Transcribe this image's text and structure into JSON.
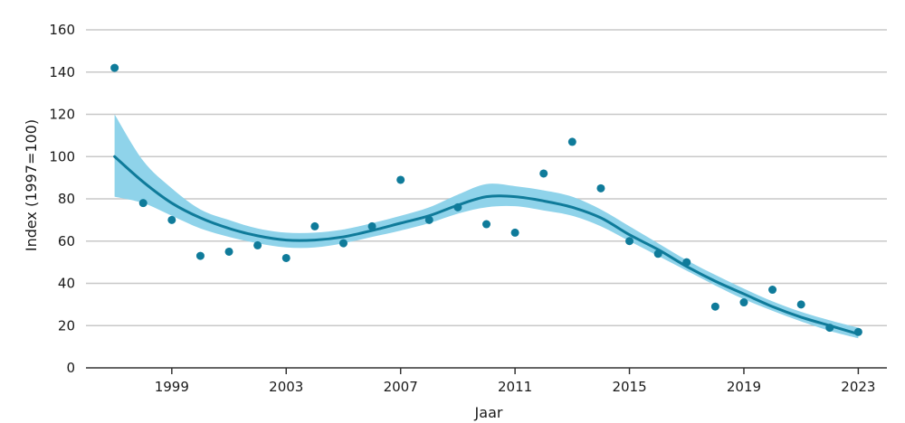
{
  "chart_data": {
    "type": "scatter",
    "xlabel": "Jaar",
    "ylabel": "Index (1997=100)",
    "xlim": [
      1996,
      2024
    ],
    "ylim": [
      0,
      160
    ],
    "x_ticks": [
      1999,
      2003,
      2007,
      2011,
      2015,
      2019,
      2023
    ],
    "y_ticks": [
      0,
      20,
      40,
      60,
      80,
      100,
      120,
      140,
      160
    ],
    "grid": "horizontal",
    "colors": {
      "points": "#0f7b9a",
      "trend": "#0f7b9a",
      "band": "#8fd3ea",
      "grid": "#c8c8c8"
    },
    "points": [
      {
        "x": 1997,
        "y": 142
      },
      {
        "x": 1998,
        "y": 78
      },
      {
        "x": 1999,
        "y": 70
      },
      {
        "x": 2000,
        "y": 53
      },
      {
        "x": 2001,
        "y": 55
      },
      {
        "x": 2002,
        "y": 58
      },
      {
        "x": 2003,
        "y": 52
      },
      {
        "x": 2004,
        "y": 67
      },
      {
        "x": 2005,
        "y": 59
      },
      {
        "x": 2006,
        "y": 67
      },
      {
        "x": 2007,
        "y": 89
      },
      {
        "x": 2008,
        "y": 70
      },
      {
        "x": 2009,
        "y": 76
      },
      {
        "x": 2010,
        "y": 68
      },
      {
        "x": 2011,
        "y": 64
      },
      {
        "x": 2012,
        "y": 92
      },
      {
        "x": 2013,
        "y": 107
      },
      {
        "x": 2014,
        "y": 85
      },
      {
        "x": 2015,
        "y": 60
      },
      {
        "x": 2016,
        "y": 54
      },
      {
        "x": 2017,
        "y": 50
      },
      {
        "x": 2018,
        "y": 29
      },
      {
        "x": 2019,
        "y": 31
      },
      {
        "x": 2020,
        "y": 37
      },
      {
        "x": 2021,
        "y": 30
      },
      {
        "x": 2022,
        "y": 19
      },
      {
        "x": 2023,
        "y": 17
      }
    ],
    "trend": [
      {
        "x": 1997,
        "y": 100,
        "lower": 81,
        "upper": 120
      },
      {
        "x": 1998,
        "y": 88,
        "lower": 78,
        "upper": 98
      },
      {
        "x": 1999,
        "y": 78,
        "lower": 72,
        "upper": 85
      },
      {
        "x": 2000,
        "y": 71,
        "lower": 66,
        "upper": 75
      },
      {
        "x": 2001,
        "y": 66,
        "lower": 62,
        "upper": 70
      },
      {
        "x": 2002,
        "y": 62.5,
        "lower": 59,
        "upper": 66
      },
      {
        "x": 2003,
        "y": 60.5,
        "lower": 57,
        "upper": 64
      },
      {
        "x": 2004,
        "y": 60.5,
        "lower": 57,
        "upper": 64
      },
      {
        "x": 2005,
        "y": 62,
        "lower": 59,
        "upper": 65.5
      },
      {
        "x": 2006,
        "y": 65,
        "lower": 62,
        "upper": 68.5
      },
      {
        "x": 2007,
        "y": 68.5,
        "lower": 65,
        "upper": 72
      },
      {
        "x": 2008,
        "y": 72,
        "lower": 68.5,
        "upper": 76
      },
      {
        "x": 2009,
        "y": 77,
        "lower": 73,
        "upper": 82
      },
      {
        "x": 2010,
        "y": 81,
        "lower": 76,
        "upper": 87
      },
      {
        "x": 2011,
        "y": 81,
        "lower": 76.5,
        "upper": 86
      },
      {
        "x": 2012,
        "y": 79,
        "lower": 74.5,
        "upper": 84
      },
      {
        "x": 2013,
        "y": 76,
        "lower": 72,
        "upper": 81
      },
      {
        "x": 2014,
        "y": 71,
        "lower": 67,
        "upper": 75
      },
      {
        "x": 2015,
        "y": 63,
        "lower": 60,
        "upper": 67
      },
      {
        "x": 2016,
        "y": 56,
        "lower": 53,
        "upper": 59
      },
      {
        "x": 2017,
        "y": 48,
        "lower": 46,
        "upper": 51
      },
      {
        "x": 2018,
        "y": 41,
        "lower": 39,
        "upper": 44
      },
      {
        "x": 2019,
        "y": 35,
        "lower": 32.5,
        "upper": 37.5
      },
      {
        "x": 2020,
        "y": 29,
        "lower": 27,
        "upper": 31.5
      },
      {
        "x": 2021,
        "y": 24,
        "lower": 22,
        "upper": 26.5
      },
      {
        "x": 2022,
        "y": 20,
        "lower": 17.5,
        "upper": 22.5
      },
      {
        "x": 2023,
        "y": 16,
        "lower": 14,
        "upper": 19
      }
    ]
  }
}
